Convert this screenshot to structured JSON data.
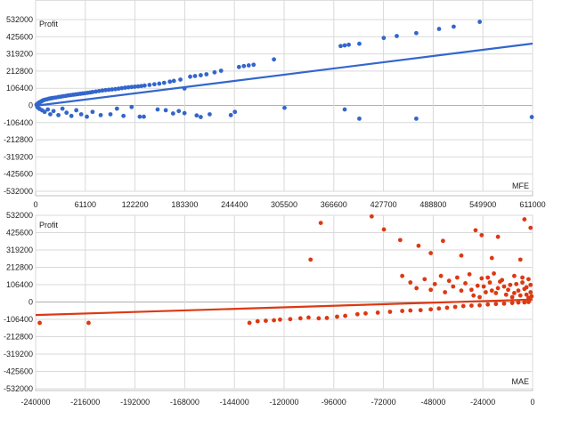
{
  "chart_data": [
    {
      "type": "scatter",
      "id": "mfe",
      "ylabel": "Profit",
      "xlabel": "MFE",
      "color": "#3366cc",
      "xlim": [
        0,
        611000
      ],
      "ylim": [
        -532000,
        532000
      ],
      "x_ticks": [
        "0",
        "61100",
        "122200",
        "183300",
        "244400",
        "305500",
        "366600",
        "427700",
        "488800",
        "549900",
        "611000"
      ],
      "y_ticks": [
        "532000",
        "425600",
        "319200",
        "212800",
        "106400",
        "0",
        "-106400",
        "-212800",
        "-319200",
        "-425600",
        "-532000"
      ],
      "trendline": [
        [
          0,
          -2000
        ],
        [
          611000,
          383000
        ]
      ],
      "points": [
        [
          1000,
          4000
        ],
        [
          2000,
          9000
        ],
        [
          3000,
          13000
        ],
        [
          4000,
          16000
        ],
        [
          5000,
          20000
        ],
        [
          6000,
          22000
        ],
        [
          7000,
          25000
        ],
        [
          8000,
          28000
        ],
        [
          9000,
          31000
        ],
        [
          10000,
          33000
        ],
        [
          12000,
          36000
        ],
        [
          14000,
          38000
        ],
        [
          16000,
          41000
        ],
        [
          18000,
          43000
        ],
        [
          20000,
          45000
        ],
        [
          22000,
          47000
        ],
        [
          25000,
          49000
        ],
        [
          28000,
          52000
        ],
        [
          31000,
          54000
        ],
        [
          34000,
          57000
        ],
        [
          37000,
          59000
        ],
        [
          40000,
          62000
        ],
        [
          43000,
          64000
        ],
        [
          46000,
          66000
        ],
        [
          49000,
          68000
        ],
        [
          52000,
          70000
        ],
        [
          55000,
          72000
        ],
        [
          58000,
          74000
        ],
        [
          61000,
          76000
        ],
        [
          64000,
          78000
        ],
        [
          67000,
          80000
        ],
        [
          70000,
          83000
        ],
        [
          74000,
          86000
        ],
        [
          78000,
          89000
        ],
        [
          82000,
          92000
        ],
        [
          86000,
          95000
        ],
        [
          90000,
          97000
        ],
        [
          94000,
          99000
        ],
        [
          98000,
          101000
        ],
        [
          102000,
          104000
        ],
        [
          106000,
          107000
        ],
        [
          110000,
          110000
        ],
        [
          114000,
          112000
        ],
        [
          118000,
          114000
        ],
        [
          122000,
          116000
        ],
        [
          126000,
          118000
        ],
        [
          130000,
          120000
        ],
        [
          134000,
          123000
        ],
        [
          140000,
          127000
        ],
        [
          146000,
          131000
        ],
        [
          152000,
          135000
        ],
        [
          158000,
          140000
        ],
        [
          165000,
          147000
        ],
        [
          170000,
          152000
        ],
        [
          178000,
          160000
        ],
        [
          183000,
          105000
        ],
        [
          190000,
          178000
        ],
        [
          196000,
          182000
        ],
        [
          203000,
          187000
        ],
        [
          210000,
          193000
        ],
        [
          220000,
          205000
        ],
        [
          228000,
          215000
        ],
        [
          250000,
          238000
        ],
        [
          256000,
          244000
        ],
        [
          262000,
          248000
        ],
        [
          268000,
          252000
        ],
        [
          293000,
          285000
        ],
        [
          375000,
          368000
        ],
        [
          380000,
          372000
        ],
        [
          385000,
          376000
        ],
        [
          398000,
          382000
        ],
        [
          428000,
          418000
        ],
        [
          444000,
          430000
        ],
        [
          468000,
          448000
        ],
        [
          496000,
          474000
        ],
        [
          514000,
          488000
        ],
        [
          546000,
          518000
        ],
        [
          2000,
          -8000
        ],
        [
          3000,
          -15000
        ],
        [
          5000,
          -22000
        ],
        [
          8000,
          -30000
        ],
        [
          11000,
          -40000
        ],
        [
          15000,
          -25000
        ],
        [
          18000,
          -55000
        ],
        [
          22000,
          -35000
        ],
        [
          28000,
          -60000
        ],
        [
          33000,
          -20000
        ],
        [
          38000,
          -45000
        ],
        [
          44000,
          -65000
        ],
        [
          50000,
          -30000
        ],
        [
          56000,
          -55000
        ],
        [
          63000,
          -70000
        ],
        [
          70000,
          -40000
        ],
        [
          80000,
          -60000
        ],
        [
          92000,
          -55000
        ],
        [
          100000,
          -20000
        ],
        [
          108000,
          -65000
        ],
        [
          118000,
          -10000
        ],
        [
          128000,
          -70000
        ],
        [
          133000,
          -70000
        ],
        [
          150000,
          -25000
        ],
        [
          160000,
          -30000
        ],
        [
          169000,
          -50000
        ],
        [
          176000,
          -35000
        ],
        [
          183000,
          -48000
        ],
        [
          198000,
          -62000
        ],
        [
          203000,
          -72000
        ],
        [
          214000,
          -55000
        ],
        [
          240000,
          -60000
        ],
        [
          245000,
          -40000
        ],
        [
          306000,
          -15000
        ],
        [
          380000,
          -25000
        ],
        [
          398000,
          -82000
        ],
        [
          468000,
          -82000
        ],
        [
          610000,
          -72000
        ]
      ]
    },
    {
      "type": "scatter",
      "id": "mae",
      "ylabel": "Profit",
      "xlabel": "MAE",
      "color": "#dc3912",
      "xlim": [
        -244000,
        0
      ],
      "ylim": [
        -532000,
        532000
      ],
      "x_ticks": [
        "-240000",
        "-216000",
        "-192000",
        "-168000",
        "-144000",
        "-120000",
        "-96000",
        "-72000",
        "-48000",
        "-24000",
        "0"
      ],
      "y_ticks": [
        "532000",
        "425600",
        "319200",
        "212800",
        "106400",
        "0",
        "-106400",
        "-212800",
        "-319200",
        "-425600",
        "-532000"
      ],
      "trendline": [
        [
          -244000,
          -80000
        ],
        [
          0,
          15000
        ]
      ],
      "points": [
        [
          -242000,
          -128000
        ],
        [
          -218000,
          -128000
        ],
        [
          -139000,
          -128000
        ],
        [
          -135000,
          -118000
        ],
        [
          -131000,
          -115000
        ],
        [
          -127000,
          -112000
        ],
        [
          -124000,
          -108000
        ],
        [
          -119000,
          -105000
        ],
        [
          -114000,
          -100000
        ],
        [
          -110000,
          -95000
        ],
        [
          -105000,
          -100000
        ],
        [
          -101000,
          -98000
        ],
        [
          -96000,
          -90000
        ],
        [
          -92000,
          -85000
        ],
        [
          -86000,
          -75000
        ],
        [
          -82000,
          -70000
        ],
        [
          -76000,
          -65000
        ],
        [
          -70000,
          -60000
        ],
        [
          -64000,
          -55000
        ],
        [
          -60000,
          -52000
        ],
        [
          -55000,
          -50000
        ],
        [
          -50000,
          -45000
        ],
        [
          -46000,
          -40000
        ],
        [
          -42000,
          -35000
        ],
        [
          -38000,
          -30000
        ],
        [
          -34000,
          -25000
        ],
        [
          -30000,
          -22000
        ],
        [
          -26000,
          -20000
        ],
        [
          -22000,
          -15000
        ],
        [
          -18000,
          -12000
        ],
        [
          -14000,
          -10000
        ],
        [
          -10000,
          -6000
        ],
        [
          -7000,
          -3000
        ],
        [
          -4000,
          -2000
        ],
        [
          -2000,
          0
        ],
        [
          -104000,
          485000
        ],
        [
          -109000,
          260000
        ],
        [
          -79000,
          525000
        ],
        [
          -73000,
          445000
        ],
        [
          -65000,
          380000
        ],
        [
          -56000,
          345000
        ],
        [
          -44000,
          375000
        ],
        [
          -28000,
          440000
        ],
        [
          -25000,
          410000
        ],
        [
          -17000,
          400000
        ],
        [
          -4000,
          507000
        ],
        [
          -1000,
          455000
        ],
        [
          -50000,
          300000
        ],
        [
          -35000,
          285000
        ],
        [
          -20000,
          270000
        ],
        [
          -6000,
          260000
        ],
        [
          -64000,
          160000
        ],
        [
          -60000,
          120000
        ],
        [
          -57000,
          85000
        ],
        [
          -53000,
          140000
        ],
        [
          -50000,
          75000
        ],
        [
          -48000,
          110000
        ],
        [
          -45000,
          160000
        ],
        [
          -43000,
          60000
        ],
        [
          -41000,
          130000
        ],
        [
          -39000,
          95000
        ],
        [
          -37000,
          150000
        ],
        [
          -35000,
          70000
        ],
        [
          -33000,
          115000
        ],
        [
          -31000,
          170000
        ],
        [
          -29000,
          40000
        ],
        [
          -27000,
          100000
        ],
        [
          -25000,
          145000
        ],
        [
          -23000,
          60000
        ],
        [
          -21000,
          120000
        ],
        [
          -19000,
          175000
        ],
        [
          -17000,
          85000
        ],
        [
          -15000,
          135000
        ],
        [
          -13000,
          45000
        ],
        [
          -11000,
          105000
        ],
        [
          -9000,
          160000
        ],
        [
          -7000,
          70000
        ],
        [
          -5000,
          120000
        ],
        [
          -3000,
          90000
        ],
        [
          -2000,
          140000
        ],
        [
          -1000,
          60000
        ],
        [
          -30000,
          75000
        ],
        [
          -26000,
          30000
        ],
        [
          -22000,
          150000
        ],
        [
          -18000,
          55000
        ],
        [
          -14000,
          95000
        ],
        [
          -10000,
          30000
        ],
        [
          -8000,
          110000
        ],
        [
          -6000,
          40000
        ],
        [
          -4000,
          80000
        ],
        [
          -2000,
          25000
        ],
        [
          -24000,
          95000
        ],
        [
          -20000,
          70000
        ],
        [
          -16000,
          125000
        ],
        [
          -12000,
          75000
        ],
        [
          -9000,
          55000
        ],
        [
          -5000,
          150000
        ],
        [
          -3000,
          45000
        ],
        [
          -1000,
          105000
        ],
        [
          -1500,
          15000
        ],
        [
          -500,
          35000
        ]
      ]
    }
  ]
}
